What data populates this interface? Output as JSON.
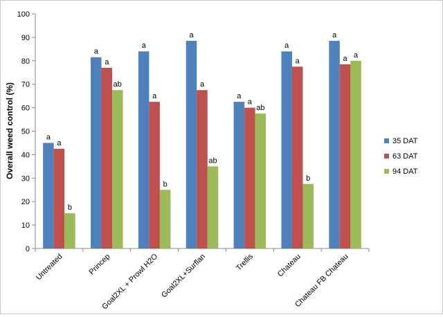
{
  "chart_data": {
    "type": "bar",
    "title": "",
    "xlabel": "",
    "ylabel": "Overall weed control (%)",
    "ylim": [
      0,
      100
    ],
    "yticks": [
      0,
      10,
      20,
      30,
      40,
      50,
      60,
      70,
      80,
      90,
      100
    ],
    "grid": false,
    "legend_position": "right",
    "categories": [
      "Untreated",
      "Princep",
      "Goal2XL + Prowl H2O",
      "Goal2XL+Surflan",
      "Trellis",
      "Chateau",
      "Chateau FB Chateau"
    ],
    "series": [
      {
        "name": "35 DAT",
        "color": "#4F81BD",
        "values": [
          45,
          81.5,
          84,
          88.5,
          62.5,
          84,
          88.5
        ],
        "labels": [
          "a",
          "a",
          "a",
          "a",
          "a",
          "a",
          "a"
        ]
      },
      {
        "name": "63 DAT",
        "color": "#C0504D",
        "values": [
          42.5,
          77,
          62.5,
          67.5,
          60,
          77.5,
          78.5
        ],
        "labels": [
          "a",
          "a",
          "a",
          "a",
          "a",
          "a",
          "a"
        ]
      },
      {
        "name": "94 DAT",
        "color": "#9BBB59",
        "values": [
          15,
          67.5,
          25,
          35,
          57.5,
          27.5,
          80
        ],
        "labels": [
          "b",
          "ab",
          "b",
          "ab",
          "ab",
          "b",
          "a"
        ]
      }
    ]
  }
}
